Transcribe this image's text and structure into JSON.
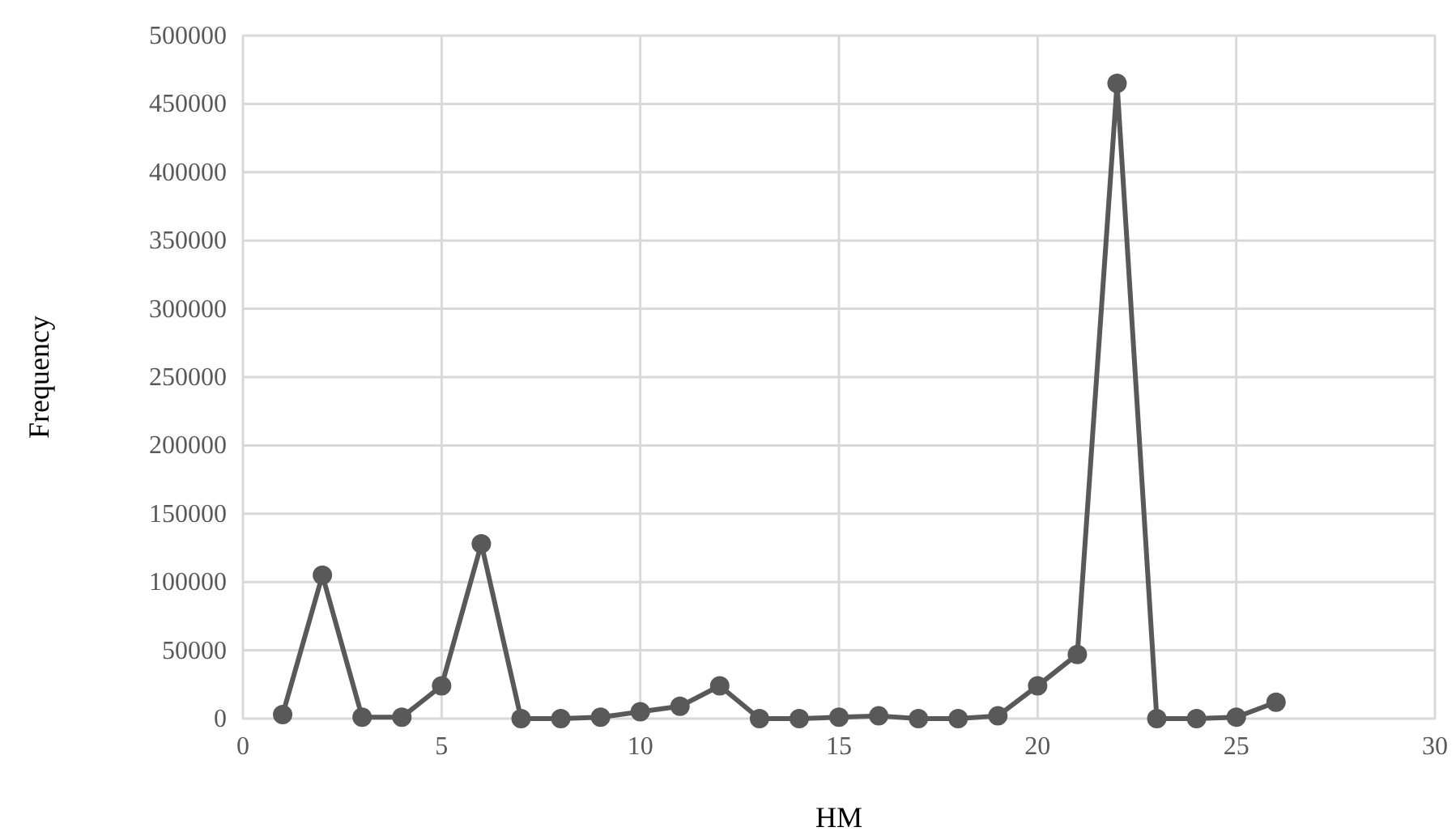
{
  "chart_data": {
    "type": "line",
    "xlabel": "HM",
    "ylabel": "Frequency",
    "x": [
      1,
      2,
      3,
      4,
      5,
      6,
      7,
      8,
      9,
      10,
      11,
      12,
      13,
      14,
      15,
      16,
      17,
      18,
      19,
      20,
      21,
      22,
      23,
      24,
      25,
      26
    ],
    "series": [
      {
        "color": "#595959",
        "values": [
          3000,
          105000,
          1000,
          1000,
          24000,
          128000,
          0,
          0,
          1000,
          5000,
          9000,
          24000,
          0,
          0,
          1000,
          2000,
          0,
          0,
          2000,
          24000,
          47000,
          465000,
          0,
          0,
          1000,
          12000
        ]
      }
    ],
    "xlim": [
      0,
      30
    ],
    "xticks": [
      0,
      5,
      10,
      15,
      20,
      25,
      30
    ],
    "ylim": [
      0,
      500000
    ],
    "yticks": [
      0,
      50000,
      100000,
      150000,
      200000,
      250000,
      300000,
      350000,
      400000,
      450000,
      500000
    ],
    "grid": true,
    "marker": "circle",
    "line_style": "solid"
  }
}
